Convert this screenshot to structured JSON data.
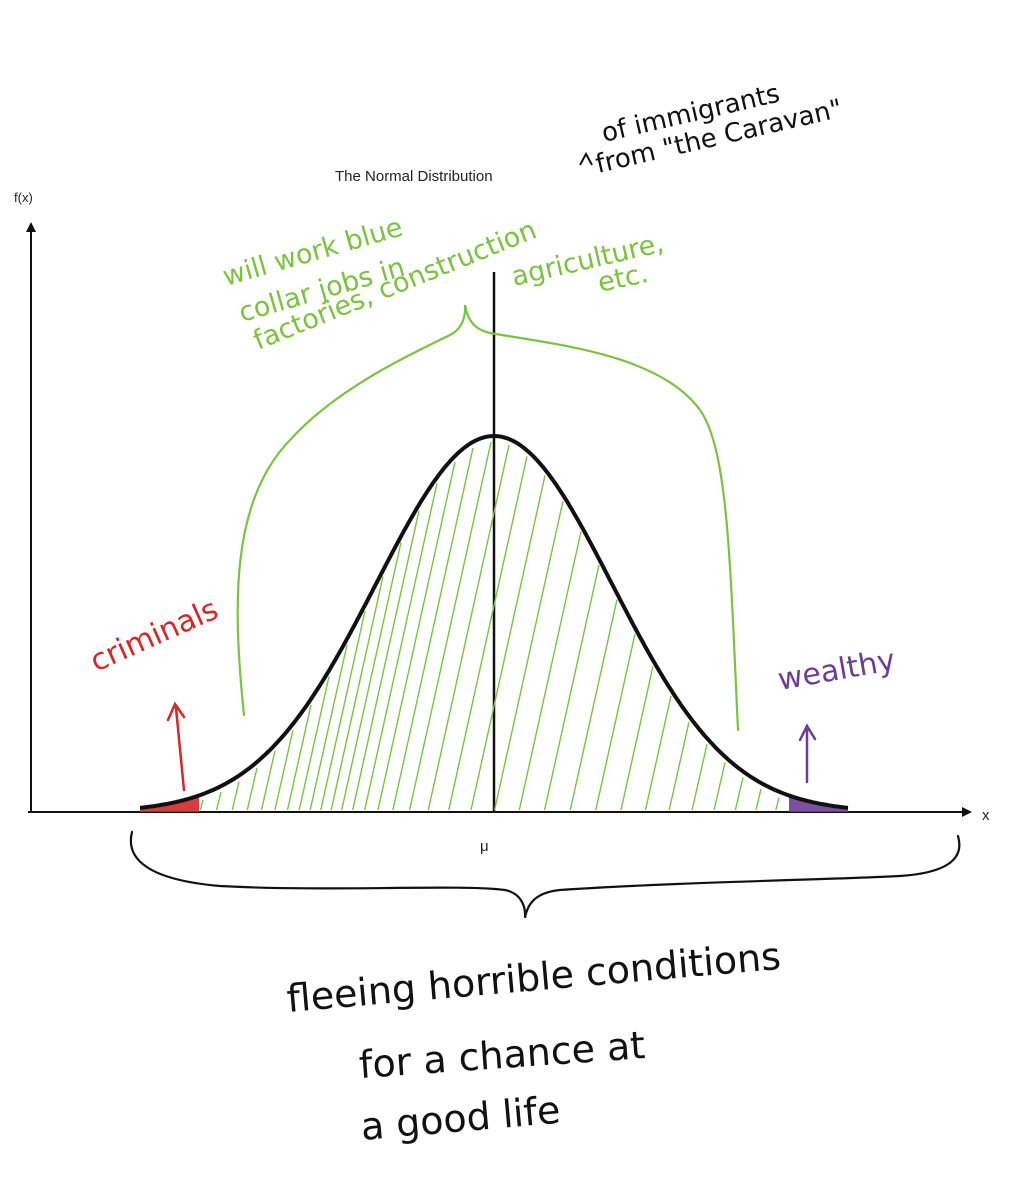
{
  "chart_data": {
    "type": "area",
    "title": "The Normal Distribution",
    "ylabel": "f(x)",
    "xlabel": "x",
    "x_tick_labels": [
      "μ"
    ],
    "distribution": "normal",
    "mean": 0,
    "std": 1,
    "xlim": [
      -3.6,
      3.6
    ],
    "ylim": [
      0,
      0.4
    ],
    "grid": false,
    "legend": "none",
    "regions": [
      {
        "name": "criminals",
        "from": -3.0,
        "to": -2.5,
        "color": "#d62728"
      },
      {
        "name": "middle",
        "from": -2.5,
        "to": 2.5,
        "color": "#7cc242"
      },
      {
        "name": "wealthy",
        "from": 2.5,
        "to": 3.0,
        "color": "#6a3d9a"
      }
    ]
  },
  "annotations": {
    "title_note": [
      "of immigrants",
      "from \"the Caravan\""
    ],
    "middle_note": [
      "will work blue",
      "collar jobs in",
      "factories, construction",
      "agriculture,",
      "etc."
    ],
    "left_tail": "criminals",
    "right_tail": "wealthy",
    "bottom_note": [
      "fleeing horrible conditions",
      "for a chance at",
      "a good life"
    ]
  },
  "colors": {
    "curve": "#111111",
    "green": "#7cc242",
    "red": "#d62728",
    "purple": "#6a3d9a",
    "ink": "#111111"
  }
}
